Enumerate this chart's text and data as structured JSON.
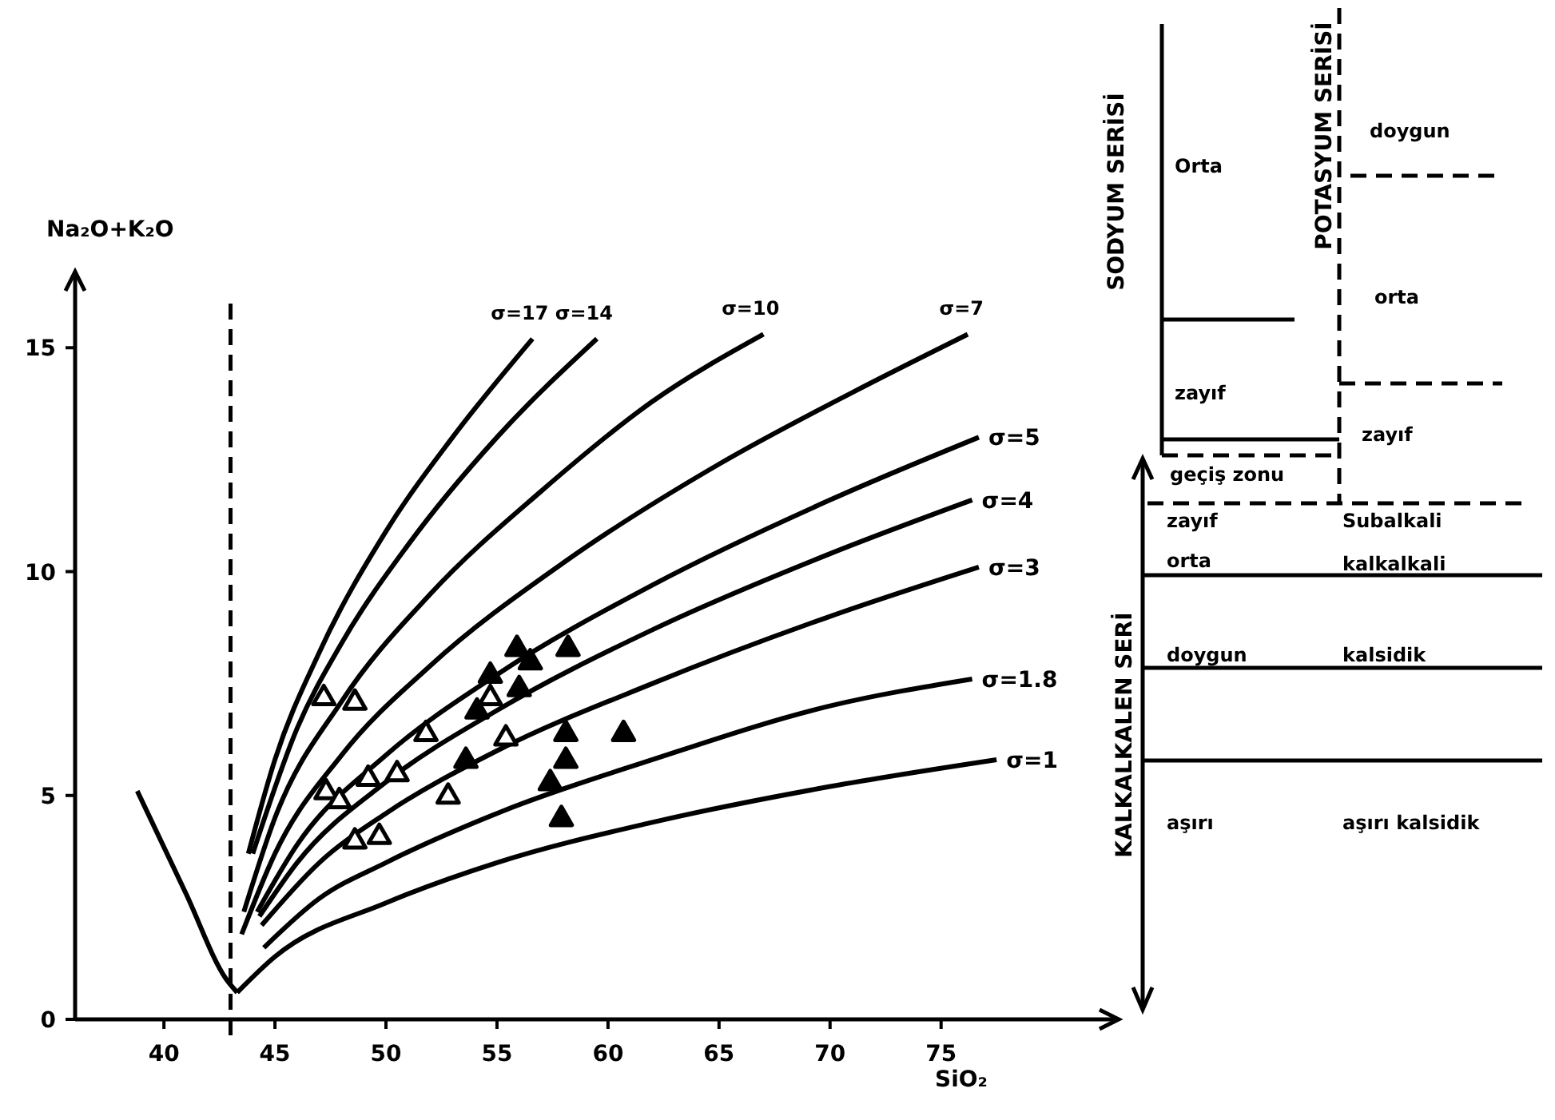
{
  "chart_data": {
    "type": "line",
    "xlabel": "SiO₂",
    "ylabel": "Na₂O+K₂O",
    "xlim": [
      36,
      83
    ],
    "ylim": [
      0,
      16.7
    ],
    "xticks": [
      40,
      45,
      50,
      55,
      60,
      65,
      70,
      75
    ],
    "yticks": [
      0,
      5,
      10,
      15
    ],
    "grid": false,
    "ref_lines": [
      {
        "axis": "x",
        "value": 43,
        "line_style": "dashed",
        "color": "#000000"
      }
    ],
    "series": [
      {
        "name": "σ=17",
        "color": "#000000",
        "x": [
          43.8,
          45,
          47,
          50,
          53,
          56.6
        ],
        "values": [
          3.7,
          5.8,
          8.2,
          10.9,
          13.0,
          15.2
        ]
      },
      {
        "name": "σ=14",
        "color": "#000000",
        "x": [
          44,
          46,
          48,
          51,
          55,
          59.5
        ],
        "values": [
          3.7,
          6.5,
          8.4,
          10.6,
          13.0,
          15.2
        ]
      },
      {
        "name": "σ=10",
        "color": "#000000",
        "x": [
          43.6,
          45,
          48,
          52,
          57,
          62,
          67
        ],
        "values": [
          2.4,
          4.5,
          7.1,
          9.5,
          11.8,
          13.8,
          15.3
        ]
      },
      {
        "name": "σ=7",
        "color": "#000000",
        "x": [
          43.5,
          45,
          48,
          52,
          58,
          65,
          71,
          76.2
        ],
        "values": [
          1.9,
          3.7,
          5.9,
          7.9,
          10.2,
          12.4,
          14.0,
          15.3
        ]
      },
      {
        "name": "σ=5",
        "color": "#000000",
        "x": [
          44.2,
          46,
          50,
          55,
          62,
          70,
          76.7
        ],
        "values": [
          2.4,
          3.9,
          5.9,
          7.7,
          9.7,
          11.6,
          13.0
        ]
      },
      {
        "name": "σ=4",
        "color": "#000000",
        "x": [
          44.3,
          46,
          50,
          55,
          62,
          70,
          76.4
        ],
        "values": [
          2.3,
          3.5,
          5.3,
          6.9,
          8.7,
          10.4,
          11.6
        ]
      },
      {
        "name": "σ=3",
        "color": "#000000",
        "x": [
          44.4,
          47,
          50,
          55,
          62,
          70,
          76.7
        ],
        "values": [
          2.1,
          3.5,
          4.6,
          6.0,
          7.5,
          9.0,
          10.1
        ]
      },
      {
        "name": "σ=1.8",
        "color": "#000000",
        "x": [
          44.5,
          47,
          50,
          55,
          62,
          70,
          76.4
        ],
        "values": [
          1.6,
          2.7,
          3.5,
          4.6,
          5.8,
          7.0,
          7.6
        ]
      },
      {
        "name": "σ=1",
        "color": "#000000",
        "x": [
          43.3,
          45,
          50,
          55,
          62,
          70,
          77.5
        ],
        "values": [
          0.6,
          1.4,
          2.6,
          3.5,
          4.4,
          5.2,
          5.8
        ]
      },
      {
        "color": "#000000",
        "x": [
          38.8,
          41,
          42.8,
          43.3
        ],
        "values": [
          5.1,
          2.8,
          0.9,
          0.6
        ]
      },
      {
        "type": "scatter",
        "marker": "triangle",
        "color": "#ffffff",
        "x": [
          47.2,
          48.6,
          47.3,
          47.9,
          49.2,
          50.5,
          48.6,
          49.7,
          51.8,
          52.8,
          54.7,
          55.4
        ],
        "values": [
          7.2,
          7.1,
          5.1,
          4.9,
          5.4,
          5.5,
          4.0,
          4.1,
          6.4,
          5.0,
          7.2,
          6.3
        ]
      },
      {
        "type": "scatter",
        "marker": "triangle",
        "color": "#000000",
        "x": [
          55.9,
          56.5,
          58.2,
          54.7,
          56.0,
          54.1,
          53.6,
          58.1,
          58.1,
          60.7,
          57.4,
          57.9
        ],
        "values": [
          8.3,
          8.0,
          8.3,
          7.7,
          7.4,
          6.9,
          5.8,
          6.4,
          5.8,
          6.4,
          5.3,
          4.5
        ]
      }
    ],
    "annotations": [
      "SODYUM SERİSİ",
      "POTASYUM SERİSİ",
      "KALKALKALEN SERİ",
      "Orta",
      "doygun",
      "orta",
      "zayıf",
      "zayıf",
      "geçiş zonu",
      "zayıf",
      "Subalkali",
      "orta",
      "kalkalkali",
      "doygun",
      "kalsidik",
      "aşırı",
      "aşırı kalsidik"
    ]
  }
}
